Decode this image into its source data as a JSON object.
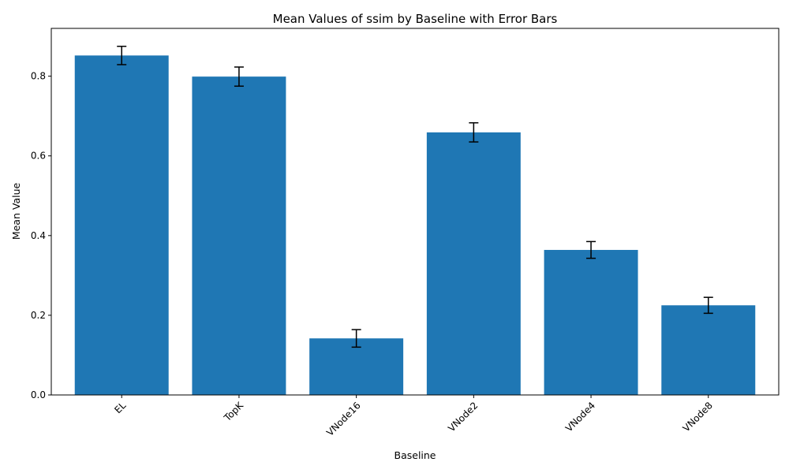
{
  "chart_data": {
    "type": "bar",
    "title": "Mean Values of ssim by Baseline with Error Bars",
    "xlabel": "Baseline",
    "ylabel": "Mean Value",
    "categories": [
      "EL",
      "TopK",
      "VNode16",
      "VNode2",
      "VNode4",
      "VNode8"
    ],
    "values": [
      0.852,
      0.799,
      0.142,
      0.659,
      0.364,
      0.225
    ],
    "errors": [
      0.023,
      0.024,
      0.022,
      0.024,
      0.021,
      0.02
    ],
    "ylim": [
      0,
      0.92
    ],
    "yticks": [
      "0.0",
      "0.2",
      "0.4",
      "0.6",
      "0.8"
    ],
    "ytick_values": [
      0.0,
      0.2,
      0.4,
      0.6,
      0.8
    ],
    "bar_color": "#1f77b4",
    "grid": false,
    "legend": "none"
  }
}
